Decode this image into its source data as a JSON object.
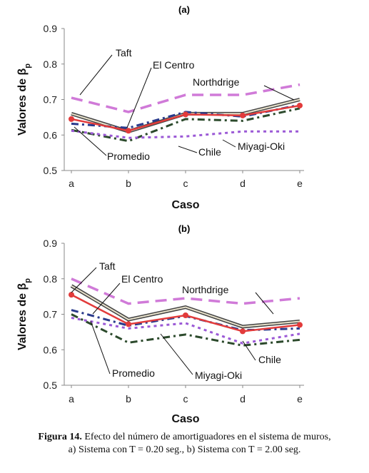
{
  "chart_data": [
    {
      "panel_label": "(a)",
      "type": "line",
      "categories": [
        "a",
        "b",
        "c",
        "d",
        "e"
      ],
      "xlabel": "Caso",
      "ylabel": "Valores de β_p",
      "ylim": [
        0.5,
        0.9
      ],
      "yticks": [
        "0.5",
        "0.6",
        "0.7",
        "0.8",
        "0.9"
      ],
      "grid": false,
      "series": [
        {
          "name": "Northdrige",
          "values": [
            0.705,
            0.665,
            0.713,
            0.713,
            0.742
          ],
          "color": "#d07ad8",
          "style": "long-dash"
        },
        {
          "name": "Taft",
          "values": [
            0.66,
            0.61,
            0.66,
            0.66,
            0.7
          ],
          "color": "#555555",
          "style": "double"
        },
        {
          "name": "El Centro",
          "values": [
            0.632,
            0.62,
            0.665,
            0.652,
            0.685
          ],
          "color": "#2a3a8c",
          "style": "dash-dot"
        },
        {
          "name": "Chile",
          "values": [
            0.614,
            0.583,
            0.645,
            0.64,
            0.675
          ],
          "color": "#2c4a2c",
          "style": "dash-dot"
        },
        {
          "name": "Miyagi-Oki",
          "values": [
            0.612,
            0.592,
            0.596,
            0.61,
            0.61
          ],
          "color": "#9b59d6",
          "style": "dotted"
        },
        {
          "name": "Promedio",
          "values": [
            0.645,
            0.612,
            0.658,
            0.655,
            0.683
          ],
          "color": "#e23b3b",
          "style": "solid-markers"
        }
      ],
      "annotations": [
        "Taft",
        "El Centro",
        "Northdrige",
        "Promedio",
        "Chile",
        "Miyagi-Oki"
      ]
    },
    {
      "panel_label": "(b)",
      "type": "line",
      "categories": [
        "a",
        "b",
        "c",
        "d",
        "e"
      ],
      "xlabel": "Caso",
      "ylabel": "Valores de β_p",
      "ylim": [
        0.5,
        0.9
      ],
      "yticks": [
        "0.5",
        "0.6",
        "0.7",
        "0.8",
        "0.9"
      ],
      "grid": false,
      "series": [
        {
          "name": "Northdrige",
          "values": [
            0.8,
            0.73,
            0.745,
            0.73,
            0.745
          ],
          "color": "#d07ad8",
          "style": "long-dash"
        },
        {
          "name": "Taft",
          "values": [
            0.78,
            0.685,
            0.72,
            0.665,
            0.68
          ],
          "color": "#555555",
          "style": "double"
        },
        {
          "name": "El Centro",
          "values": [
            0.712,
            0.668,
            0.695,
            0.655,
            0.66
          ],
          "color": "#2a3a8c",
          "style": "dash-dot"
        },
        {
          "name": "Chile",
          "values": [
            0.7,
            0.62,
            0.643,
            0.612,
            0.628
          ],
          "color": "#2c4a2c",
          "style": "dash-dot"
        },
        {
          "name": "Miyagi-Oki",
          "values": [
            0.69,
            0.66,
            0.675,
            0.618,
            0.645
          ],
          "color": "#9b59d6",
          "style": "dotted"
        },
        {
          "name": "Promedio",
          "values": [
            0.755,
            0.672,
            0.697,
            0.652,
            0.67
          ],
          "color": "#e23b3b",
          "style": "solid-markers"
        }
      ],
      "annotations": [
        "Taft",
        "El Centro",
        "Northdrige",
        "Promedio",
        "Chile",
        "Miyagi-Oki"
      ]
    }
  ],
  "caption": {
    "bold": "Figura 14.",
    "line1": " Efecto del número de amortiguadores en el sistema de muros,",
    "line2": "a) Sistema con T = 0.20 seg., b) Sistema con T = 2.00 seg."
  }
}
